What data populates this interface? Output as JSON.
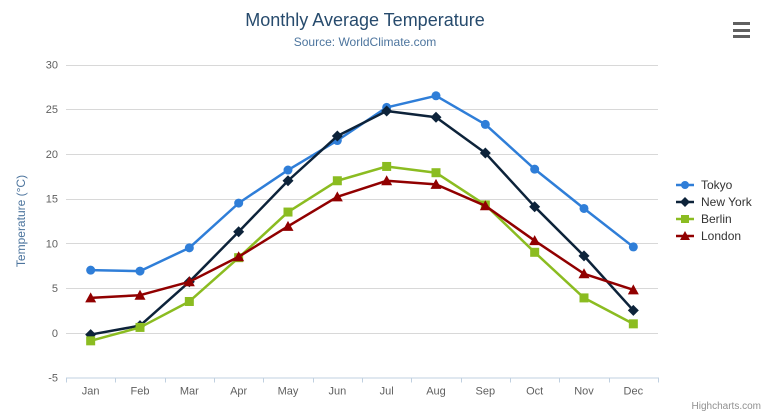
{
  "header": {
    "title": "Monthly Average Temperature",
    "subtitle": "Source: WorldClimate.com"
  },
  "credit": "Highcharts.com",
  "colors": {
    "title": "#274b6d",
    "subtitle": "#4d759e",
    "axis_title": "#4d759e",
    "axis_label": "#606060",
    "grid": "#d8d8d8",
    "axis_line": "#c0d0e0",
    "legend_text": "#333333",
    "credit": "#909090",
    "menu_icon": "#606060"
  },
  "chart_data": {
    "type": "line",
    "title": "Monthly Average Temperature",
    "subtitle": "Source: WorldClimate.com",
    "categories": [
      "Jan",
      "Feb",
      "Mar",
      "Apr",
      "May",
      "Jun",
      "Jul",
      "Aug",
      "Sep",
      "Oct",
      "Nov",
      "Dec"
    ],
    "xlabel": "",
    "ylabel": "Temperature (°C)",
    "ylim": [
      -5,
      30
    ],
    "yticks": [
      -5,
      0,
      5,
      10,
      15,
      20,
      25,
      30
    ],
    "grid": true,
    "legend_position": "right",
    "series": [
      {
        "name": "Tokyo",
        "color": "#2f7ed8",
        "marker": "circle",
        "values": [
          7.0,
          6.9,
          9.5,
          14.5,
          18.2,
          21.5,
          25.2,
          26.5,
          23.3,
          18.3,
          13.9,
          9.6
        ]
      },
      {
        "name": "New York",
        "color": "#0d233a",
        "marker": "diamond",
        "values": [
          -0.2,
          0.8,
          5.7,
          11.3,
          17.0,
          22.0,
          24.8,
          24.1,
          20.1,
          14.1,
          8.6,
          2.5
        ]
      },
      {
        "name": "Berlin",
        "color": "#8bbc21",
        "marker": "square",
        "values": [
          -0.9,
          0.6,
          3.5,
          8.4,
          13.5,
          17.0,
          18.6,
          17.9,
          14.3,
          9.0,
          3.9,
          1.0
        ]
      },
      {
        "name": "London",
        "color": "#910000",
        "marker": "triangle",
        "values": [
          3.9,
          4.2,
          5.7,
          8.5,
          11.9,
          15.2,
          17.0,
          16.6,
          14.2,
          10.3,
          6.6,
          4.8
        ]
      }
    ]
  }
}
